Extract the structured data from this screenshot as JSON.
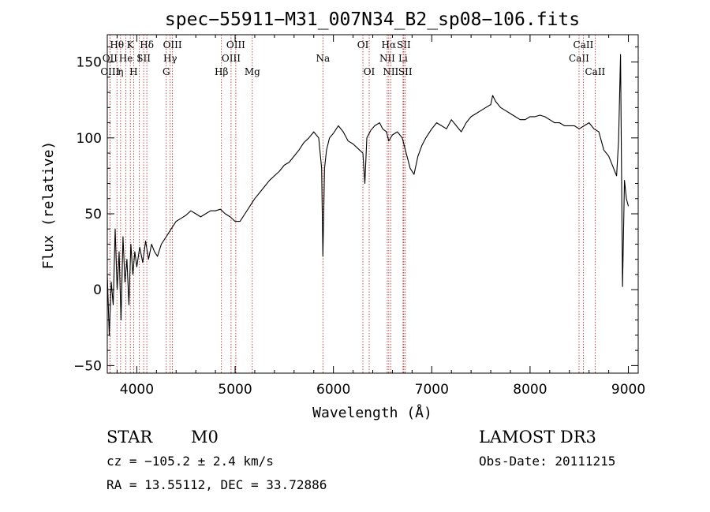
{
  "chart_data": {
    "type": "line",
    "title": "spec−55911−M31_007N34_B2_sp08−106.fits",
    "xlabel": "Wavelength (Å)",
    "ylabel": "Flux (relative)",
    "xlim": [
      3700,
      9100
    ],
    "ylim": [
      -55,
      168
    ],
    "x_ticks": [
      4000,
      5000,
      6000,
      7000,
      8000,
      9000
    ],
    "x_tick_labels": [
      "4000",
      "5000",
      "6000",
      "7000",
      "8000",
      "9000"
    ],
    "y_ticks": [
      -50,
      0,
      50,
      100,
      150
    ],
    "y_tick_labels": [
      "−50",
      "0",
      "50",
      "100",
      "150"
    ],
    "series": [
      {
        "name": "spectrum",
        "x": [
          3700,
          3720,
          3740,
          3760,
          3780,
          3800,
          3820,
          3840,
          3860,
          3880,
          3900,
          3920,
          3940,
          3960,
          3980,
          4000,
          4030,
          4060,
          4090,
          4120,
          4150,
          4180,
          4210,
          4250,
          4300,
          4350,
          4400,
          4450,
          4500,
          4550,
          4600,
          4650,
          4700,
          4750,
          4800,
          4850,
          4900,
          4950,
          5000,
          5050,
          5100,
          5150,
          5200,
          5250,
          5300,
          5350,
          5400,
          5450,
          5500,
          5550,
          5600,
          5650,
          5700,
          5750,
          5800,
          5850,
          5880,
          5893,
          5910,
          5930,
          5960,
          6000,
          6050,
          6100,
          6150,
          6200,
          6250,
          6300,
          6320,
          6340,
          6380,
          6420,
          6470,
          6500,
          6540,
          6563,
          6600,
          6650,
          6700,
          6740,
          6780,
          6820,
          6860,
          6900,
          6940,
          6980,
          7000,
          7050,
          7100,
          7150,
          7200,
          7250,
          7300,
          7350,
          7400,
          7450,
          7500,
          7550,
          7600,
          7620,
          7650,
          7700,
          7750,
          7800,
          7850,
          7900,
          7950,
          8000,
          8050,
          8100,
          8150,
          8200,
          8250,
          8300,
          8350,
          8400,
          8450,
          8500,
          8550,
          8600,
          8650,
          8700,
          8750,
          8800,
          8850,
          8880,
          8900,
          8920,
          8940,
          8960,
          8980,
          9000
        ],
        "y": [
          10,
          -30,
          5,
          -10,
          40,
          0,
          25,
          -20,
          35,
          5,
          20,
          -10,
          30,
          10,
          25,
          15,
          28,
          18,
          32,
          20,
          30,
          25,
          22,
          30,
          35,
          40,
          45,
          47,
          49,
          52,
          50,
          48,
          50,
          52,
          52,
          53,
          50,
          48,
          45,
          45,
          50,
          55,
          60,
          64,
          68,
          72,
          75,
          78,
          82,
          84,
          88,
          92,
          97,
          100,
          104,
          100,
          80,
          22,
          80,
          92,
          100,
          103,
          108,
          104,
          98,
          96,
          93,
          90,
          70,
          100,
          105,
          108,
          110,
          106,
          104,
          98,
          102,
          104,
          100,
          90,
          80,
          76,
          88,
          95,
          100,
          104,
          106,
          110,
          108,
          106,
          112,
          108,
          104,
          110,
          114,
          116,
          118,
          120,
          122,
          128,
          124,
          120,
          118,
          116,
          114,
          112,
          112,
          114,
          114,
          115,
          114,
          112,
          110,
          110,
          108,
          108,
          108,
          106,
          108,
          110,
          106,
          104,
          92,
          88,
          80,
          75,
          98,
          155,
          2,
          72,
          60,
          55
        ]
      }
    ],
    "line_markers": [
      {
        "wl": 3798,
        "label": "Hθ",
        "row": 0
      },
      {
        "wl": 3727,
        "label": "OII",
        "row": 1
      },
      {
        "wl": 3727,
        "label": "OIII",
        "row": 2
      },
      {
        "wl": 3835,
        "label": "η",
        "row": 2
      },
      {
        "wl": 3889,
        "label": "He",
        "row": 1
      },
      {
        "wl": 3934,
        "label": "K",
        "row": 0
      },
      {
        "wl": 3968,
        "label": "H",
        "row": 2
      },
      {
        "wl": 4026,
        "label": "I",
        "row": 1
      },
      {
        "wl": 4070,
        "label": "SII",
        "row": 1
      },
      {
        "wl": 4102,
        "label": "Hδ",
        "row": 0
      },
      {
        "wl": 4300,
        "label": "G",
        "row": 2
      },
      {
        "wl": 4340,
        "label": "Hγ",
        "row": 1
      },
      {
        "wl": 4363,
        "label": "OIII",
        "row": 0
      },
      {
        "wl": 4861,
        "label": "Hβ",
        "row": 2
      },
      {
        "wl": 4959,
        "label": "OIII",
        "row": 1
      },
      {
        "wl": 5007,
        "label": "OIII",
        "row": 0
      },
      {
        "wl": 5175,
        "label": "Mg",
        "row": 2
      },
      {
        "wl": 5893,
        "label": "Na",
        "row": 1
      },
      {
        "wl": 6300,
        "label": "OI",
        "row": 0
      },
      {
        "wl": 6364,
        "label": "OI",
        "row": 2
      },
      {
        "wl": 6548,
        "label": "NII",
        "row": 1
      },
      {
        "wl": 6563,
        "label": "Hα",
        "row": 0
      },
      {
        "wl": 6583,
        "label": "NII",
        "row": 2
      },
      {
        "wl": 6708,
        "label": "Li",
        "row": 1
      },
      {
        "wl": 6716,
        "label": "SII",
        "row": 0
      },
      {
        "wl": 6731,
        "label": "SII",
        "row": 2
      },
      {
        "wl": 8498,
        "label": "CaII",
        "row": 1
      },
      {
        "wl": 8542,
        "label": "CaII",
        "row": 0
      },
      {
        "wl": 8662,
        "label": "CaII",
        "row": 2
      }
    ]
  },
  "info": {
    "object_class": "STAR",
    "subclass": "M0",
    "survey": "LAMOST DR3",
    "cz": "cz = −105.2 ± 2.4 km/s",
    "obs_date": "Obs-Date: 20111215",
    "coords": "RA =  13.55112, DEC =  33.72886"
  }
}
